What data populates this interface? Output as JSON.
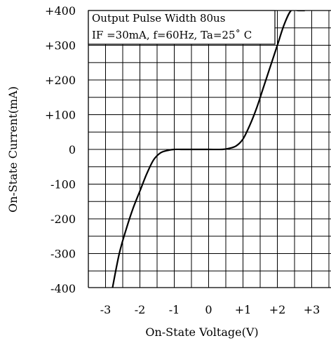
{
  "chart_data": {
    "type": "line",
    "xlabel": "On-State Voltage(V)",
    "ylabel": "On-State Current(mA)",
    "xlim": [
      -3.5,
      3.5
    ],
    "ylim": [
      -400,
      400
    ],
    "x_ticks": [
      -3,
      -2,
      -1,
      0,
      1,
      2,
      3
    ],
    "x_tick_labels": [
      "-3",
      "-2",
      "-1",
      "0",
      "+1",
      "+2",
      "+3"
    ],
    "y_ticks": [
      400,
      300,
      200,
      100,
      0,
      -100,
      -200,
      -300,
      -400
    ],
    "y_tick_labels": [
      "+400",
      "+300",
      "+200",
      "+100",
      "0",
      "-100",
      "-200",
      "-300",
      "-400"
    ],
    "grid": true,
    "annotation": {
      "line1": "Output Pulse Width 80us",
      "line2": "IF =30mA, f=60Hz, Ta=25˚ C"
    },
    "series": [
      {
        "x": [
          -2.8,
          -2.6,
          -2.4,
          -2.2,
          -2.0,
          -1.8,
          -1.6,
          -1.4,
          -1.2,
          -1.0,
          -0.8,
          -0.6,
          -0.4,
          0.0,
          0.4,
          0.6,
          0.8,
          1.0,
          1.2,
          1.4,
          1.6,
          1.8,
          2.0,
          2.2,
          2.4,
          2.6,
          2.8
        ],
        "y": [
          -400,
          -300,
          -230,
          -170,
          -120,
          -70,
          -30,
          -10,
          -3,
          0,
          0,
          0,
          0,
          0,
          0,
          3,
          10,
          30,
          70,
          120,
          180,
          240,
          300,
          360,
          400,
          400,
          400
        ]
      }
    ]
  }
}
